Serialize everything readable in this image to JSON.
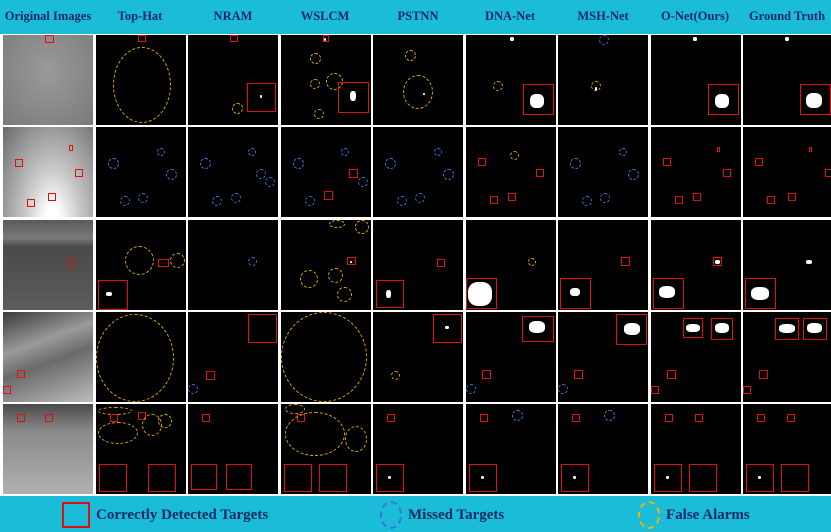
{
  "columns": [
    "Original Images",
    "Top-Hat",
    "NRAM",
    "WSLCM",
    "PSTNN",
    "DNA-Net",
    "MSH-Net",
    "O-Net(Ours)",
    "Ground Truth"
  ],
  "legend": {
    "correct": "Correctly Detected Targets",
    "missed": "Missed Targets",
    "false_alarms": "False Alarms"
  },
  "colors": {
    "background": "#1bbcd8",
    "title_text": "#0d2a66",
    "correct": "#e01010",
    "missed": "#3b74d8",
    "false_alarm": "#f0b400"
  },
  "rows": 5
}
